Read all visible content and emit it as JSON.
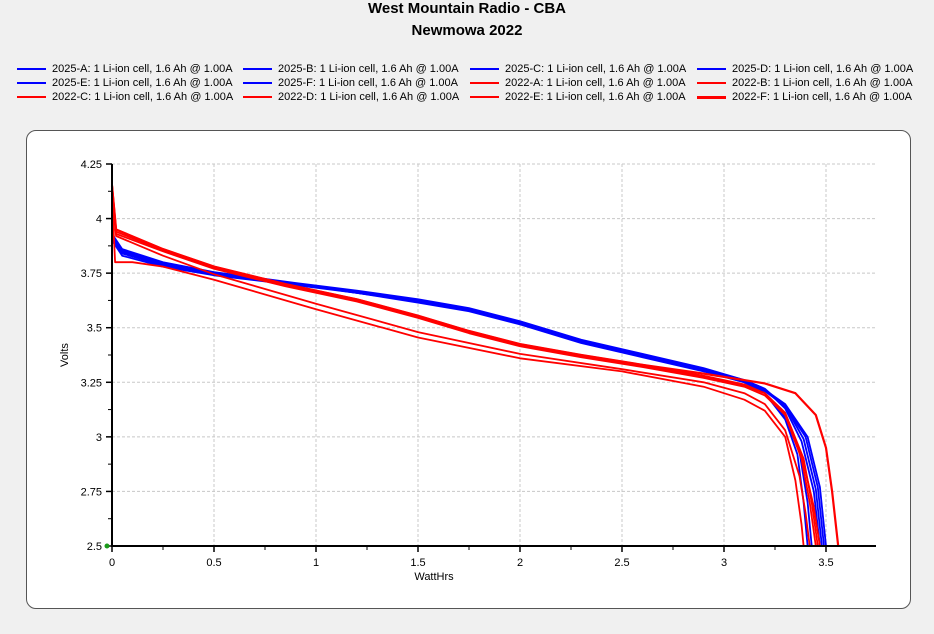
{
  "chart_data": {
    "type": "line",
    "title": "West Mountain Radio - CBA",
    "subtitle": "Newmowa 2022",
    "xlabel": "WattHrs",
    "ylabel": "Volts",
    "xlim": [
      0,
      3.75
    ],
    "ylim": [
      2.5,
      4.25
    ],
    "xticks": [
      "0",
      "0.5",
      "1",
      "1.5",
      "2",
      "2.5",
      "3",
      "3.5"
    ],
    "yticks": [
      "2.5",
      "2.75",
      "3",
      "3.25",
      "3.5",
      "3.75",
      "4",
      "4.25"
    ],
    "grid": true,
    "legend_position": "top",
    "series": [
      {
        "name": "2025-A: 1 Li-ion cell, 1.6 Ah @ 1.00A",
        "color": "#0000ff",
        "points": [
          [
            0,
            3.92
          ],
          [
            0.05,
            3.85
          ],
          [
            0.25,
            3.79
          ],
          [
            0.5,
            3.75
          ],
          [
            0.9,
            3.7
          ],
          [
            1.2,
            3.665
          ],
          [
            1.5,
            3.625
          ],
          [
            1.75,
            3.585
          ],
          [
            2.0,
            3.525
          ],
          [
            2.3,
            3.44
          ],
          [
            2.6,
            3.375
          ],
          [
            2.9,
            3.31
          ],
          [
            3.1,
            3.255
          ],
          [
            3.2,
            3.2
          ],
          [
            3.3,
            3.08
          ],
          [
            3.36,
            2.92
          ],
          [
            3.39,
            2.7
          ],
          [
            3.41,
            2.5
          ]
        ]
      },
      {
        "name": "2025-B: 1 Li-ion cell, 1.6 Ah @ 1.00A",
        "color": "#0000ff",
        "points": [
          [
            0,
            3.91
          ],
          [
            0.05,
            3.84
          ],
          [
            0.25,
            3.785
          ],
          [
            0.5,
            3.745
          ],
          [
            0.9,
            3.7
          ],
          [
            1.2,
            3.66
          ],
          [
            1.5,
            3.62
          ],
          [
            1.75,
            3.58
          ],
          [
            2.0,
            3.52
          ],
          [
            2.3,
            3.435
          ],
          [
            2.6,
            3.37
          ],
          [
            2.9,
            3.305
          ],
          [
            3.1,
            3.25
          ],
          [
            3.2,
            3.2
          ],
          [
            3.3,
            3.09
          ],
          [
            3.37,
            2.93
          ],
          [
            3.41,
            2.7
          ],
          [
            3.43,
            2.5
          ]
        ]
      },
      {
        "name": "2025-C: 1 Li-ion cell, 1.6 Ah @ 1.00A",
        "color": "#0000ff",
        "points": [
          [
            0,
            3.93
          ],
          [
            0.05,
            3.86
          ],
          [
            0.25,
            3.8
          ],
          [
            0.5,
            3.755
          ],
          [
            0.9,
            3.705
          ],
          [
            1.2,
            3.67
          ],
          [
            1.5,
            3.63
          ],
          [
            1.75,
            3.59
          ],
          [
            2.0,
            3.53
          ],
          [
            2.3,
            3.445
          ],
          [
            2.6,
            3.38
          ],
          [
            2.9,
            3.315
          ],
          [
            3.1,
            3.26
          ],
          [
            3.2,
            3.22
          ],
          [
            3.3,
            3.13
          ],
          [
            3.38,
            2.98
          ],
          [
            3.44,
            2.75
          ],
          [
            3.47,
            2.5
          ]
        ]
      },
      {
        "name": "2025-D: 1 Li-ion cell, 1.6 Ah @ 1.00A",
        "color": "#0000ff",
        "points": [
          [
            0,
            3.92
          ],
          [
            0.05,
            3.855
          ],
          [
            0.25,
            3.795
          ],
          [
            0.5,
            3.75
          ],
          [
            0.9,
            3.7
          ],
          [
            1.2,
            3.665
          ],
          [
            1.5,
            3.625
          ],
          [
            1.75,
            3.585
          ],
          [
            2.0,
            3.525
          ],
          [
            2.3,
            3.44
          ],
          [
            2.6,
            3.375
          ],
          [
            2.9,
            3.31
          ],
          [
            3.1,
            3.26
          ],
          [
            3.2,
            3.22
          ],
          [
            3.3,
            3.14
          ],
          [
            3.39,
            2.99
          ],
          [
            3.45,
            2.76
          ],
          [
            3.48,
            2.5
          ]
        ]
      },
      {
        "name": "2025-E: 1 Li-ion cell, 1.6 Ah @ 1.00A",
        "color": "#0000ff",
        "points": [
          [
            0,
            3.9
          ],
          [
            0.05,
            3.83
          ],
          [
            0.25,
            3.78
          ],
          [
            0.5,
            3.74
          ],
          [
            0.9,
            3.695
          ],
          [
            1.2,
            3.66
          ],
          [
            1.5,
            3.615
          ],
          [
            1.75,
            3.575
          ],
          [
            2.0,
            3.515
          ],
          [
            2.3,
            3.43
          ],
          [
            2.6,
            3.365
          ],
          [
            2.9,
            3.3
          ],
          [
            3.1,
            3.25
          ],
          [
            3.2,
            3.21
          ],
          [
            3.3,
            3.14
          ],
          [
            3.4,
            3.0
          ],
          [
            3.46,
            2.77
          ],
          [
            3.49,
            2.5
          ]
        ]
      },
      {
        "name": "2025-F: 1 Li-ion cell, 1.6 Ah @ 1.00A",
        "color": "#0000ff",
        "points": [
          [
            0,
            3.91
          ],
          [
            0.05,
            3.845
          ],
          [
            0.25,
            3.79
          ],
          [
            0.5,
            3.745
          ],
          [
            0.9,
            3.7
          ],
          [
            1.2,
            3.66
          ],
          [
            1.5,
            3.62
          ],
          [
            1.75,
            3.58
          ],
          [
            2.0,
            3.52
          ],
          [
            2.3,
            3.435
          ],
          [
            2.6,
            3.37
          ],
          [
            2.9,
            3.305
          ],
          [
            3.1,
            3.255
          ],
          [
            3.2,
            3.215
          ],
          [
            3.3,
            3.15
          ],
          [
            3.41,
            3.0
          ],
          [
            3.47,
            2.77
          ],
          [
            3.5,
            2.5
          ]
        ]
      },
      {
        "name": "2022-A: 1 Li-ion cell, 1.6 Ah @ 1.00A",
        "color": "#ff0000",
        "points": [
          [
            0,
            4.16
          ],
          [
            0.02,
            3.95
          ],
          [
            0.25,
            3.86
          ],
          [
            0.5,
            3.78
          ],
          [
            0.85,
            3.7
          ],
          [
            1.2,
            3.63
          ],
          [
            1.5,
            3.555
          ],
          [
            1.75,
            3.485
          ],
          [
            2.0,
            3.425
          ],
          [
            2.3,
            3.375
          ],
          [
            2.6,
            3.33
          ],
          [
            2.9,
            3.28
          ],
          [
            3.1,
            3.24
          ],
          [
            3.2,
            3.2
          ],
          [
            3.3,
            3.1
          ],
          [
            3.38,
            2.9
          ],
          [
            3.42,
            2.7
          ],
          [
            3.45,
            2.5
          ]
        ]
      },
      {
        "name": "2022-B: 1 Li-ion cell, 1.6 Ah @ 1.00A",
        "color": "#ff0000",
        "points": [
          [
            0,
            4.15
          ],
          [
            0.02,
            3.94
          ],
          [
            0.25,
            3.855
          ],
          [
            0.5,
            3.775
          ],
          [
            0.85,
            3.695
          ],
          [
            1.2,
            3.625
          ],
          [
            1.5,
            3.55
          ],
          [
            1.75,
            3.48
          ],
          [
            2.0,
            3.42
          ],
          [
            2.3,
            3.37
          ],
          [
            2.6,
            3.325
          ],
          [
            2.9,
            3.275
          ],
          [
            3.1,
            3.235
          ],
          [
            3.2,
            3.2
          ],
          [
            3.3,
            3.11
          ],
          [
            3.39,
            2.9
          ],
          [
            3.43,
            2.7
          ],
          [
            3.46,
            2.5
          ]
        ]
      },
      {
        "name": "2022-C: 1 Li-ion cell, 1.6 Ah @ 1.00A",
        "color": "#ff0000",
        "points": [
          [
            0,
            4.14
          ],
          [
            0.02,
            3.93
          ],
          [
            0.25,
            3.85
          ],
          [
            0.5,
            3.77
          ],
          [
            0.85,
            3.69
          ],
          [
            1.2,
            3.62
          ],
          [
            1.5,
            3.545
          ],
          [
            1.75,
            3.475
          ],
          [
            2.0,
            3.415
          ],
          [
            2.3,
            3.365
          ],
          [
            2.6,
            3.32
          ],
          [
            2.9,
            3.27
          ],
          [
            3.1,
            3.23
          ],
          [
            3.2,
            3.19
          ],
          [
            3.3,
            3.1
          ],
          [
            3.39,
            2.88
          ],
          [
            3.44,
            2.68
          ],
          [
            3.47,
            2.5
          ]
        ]
      },
      {
        "name": "2022-D: 1 Li-ion cell, 1.6 Ah @ 1.00A",
        "color": "#ff0000",
        "points": [
          [
            0,
            4.1
          ],
          [
            0.02,
            3.92
          ],
          [
            0.25,
            3.83
          ],
          [
            0.5,
            3.745
          ],
          [
            1.0,
            3.61
          ],
          [
            1.5,
            3.48
          ],
          [
            2.0,
            3.38
          ],
          [
            2.5,
            3.31
          ],
          [
            2.9,
            3.25
          ],
          [
            3.1,
            3.2
          ],
          [
            3.2,
            3.15
          ],
          [
            3.3,
            3.03
          ],
          [
            3.37,
            2.82
          ],
          [
            3.4,
            2.65
          ],
          [
            3.42,
            2.5
          ]
        ]
      },
      {
        "name": "2022-E: 1 Li-ion cell, 1.6 Ah @ 1.00A",
        "color": "#ff0000",
        "points": [
          [
            0,
            4.1
          ],
          [
            0.015,
            3.8
          ],
          [
            0.1,
            3.8
          ],
          [
            0.25,
            3.78
          ],
          [
            0.5,
            3.72
          ],
          [
            1.0,
            3.585
          ],
          [
            1.5,
            3.455
          ],
          [
            2.0,
            3.36
          ],
          [
            2.5,
            3.3
          ],
          [
            2.9,
            3.23
          ],
          [
            3.1,
            3.17
          ],
          [
            3.2,
            3.12
          ],
          [
            3.3,
            3.0
          ],
          [
            3.35,
            2.8
          ],
          [
            3.38,
            2.6
          ],
          [
            3.39,
            2.5
          ]
        ]
      },
      {
        "name": "2022-F: 1 Li-ion cell, 1.6 Ah @ 1.00A",
        "color": "#ff0000",
        "points": [
          [
            0,
            4.15
          ],
          [
            0.02,
            3.95
          ],
          [
            0.25,
            3.86
          ],
          [
            0.5,
            3.78
          ],
          [
            0.85,
            3.7
          ],
          [
            1.2,
            3.63
          ],
          [
            1.5,
            3.555
          ],
          [
            1.75,
            3.485
          ],
          [
            2.0,
            3.425
          ],
          [
            2.3,
            3.375
          ],
          [
            2.6,
            3.33
          ],
          [
            2.9,
            3.29
          ],
          [
            3.2,
            3.245
          ],
          [
            3.35,
            3.2
          ],
          [
            3.45,
            3.1
          ],
          [
            3.5,
            2.95
          ],
          [
            3.53,
            2.75
          ],
          [
            3.56,
            2.5
          ]
        ]
      }
    ]
  }
}
